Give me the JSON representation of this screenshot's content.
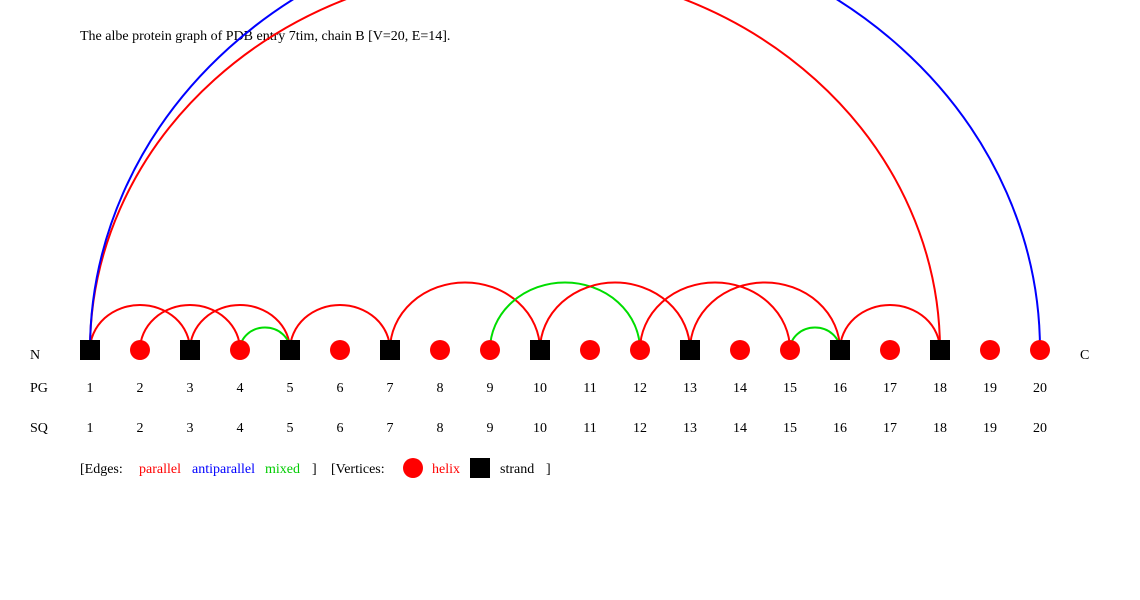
{
  "title": "The albe protein graph of PDB entry 7tim, chain B [V=20, E=14].",
  "terminus": {
    "n": "N",
    "c": "C"
  },
  "row_labels": {
    "pg": "PG",
    "sq": "SQ"
  },
  "colors": {
    "helix": "#ff0000",
    "strand": "#000000",
    "parallel": "#ff0000",
    "antiparallel": "#0000ff",
    "mixed": "#00dd00",
    "text": "#000000"
  },
  "vertices": [
    {
      "pg": "1",
      "sq": "1",
      "type": "strand"
    },
    {
      "pg": "2",
      "sq": "2",
      "type": "helix"
    },
    {
      "pg": "3",
      "sq": "3",
      "type": "strand"
    },
    {
      "pg": "4",
      "sq": "4",
      "type": "helix"
    },
    {
      "pg": "5",
      "sq": "5",
      "type": "strand"
    },
    {
      "pg": "6",
      "sq": "6",
      "type": "helix"
    },
    {
      "pg": "7",
      "sq": "7",
      "type": "strand"
    },
    {
      "pg": "8",
      "sq": "8",
      "type": "helix"
    },
    {
      "pg": "9",
      "sq": "9",
      "type": "helix"
    },
    {
      "pg": "10",
      "sq": "10",
      "type": "strand"
    },
    {
      "pg": "11",
      "sq": "11",
      "type": "helix"
    },
    {
      "pg": "12",
      "sq": "12",
      "type": "helix"
    },
    {
      "pg": "13",
      "sq": "13",
      "type": "strand"
    },
    {
      "pg": "14",
      "sq": "14",
      "type": "helix"
    },
    {
      "pg": "15",
      "sq": "15",
      "type": "helix"
    },
    {
      "pg": "16",
      "sq": "16",
      "type": "strand"
    },
    {
      "pg": "17",
      "sq": "17",
      "type": "helix"
    },
    {
      "pg": "18",
      "sq": "18",
      "type": "strand"
    },
    {
      "pg": "19",
      "sq": "19",
      "type": "helix"
    },
    {
      "pg": "20",
      "sq": "20",
      "type": "helix"
    }
  ],
  "edges": [
    {
      "from": 1,
      "to": 3,
      "type": "parallel"
    },
    {
      "from": 1,
      "to": 18,
      "type": "parallel"
    },
    {
      "from": 1,
      "to": 20,
      "type": "antiparallel"
    },
    {
      "from": 2,
      "to": 4,
      "type": "parallel"
    },
    {
      "from": 3,
      "to": 5,
      "type": "parallel"
    },
    {
      "from": 4,
      "to": 5,
      "type": "mixed"
    },
    {
      "from": 5,
      "to": 7,
      "type": "parallel"
    },
    {
      "from": 7,
      "to": 10,
      "type": "parallel"
    },
    {
      "from": 9,
      "to": 12,
      "type": "mixed"
    },
    {
      "from": 10,
      "to": 13,
      "type": "parallel"
    },
    {
      "from": 12,
      "to": 15,
      "type": "parallel"
    },
    {
      "from": 13,
      "to": 16,
      "type": "parallel"
    },
    {
      "from": 15,
      "to": 16,
      "type": "mixed"
    },
    {
      "from": 16,
      "to": 18,
      "type": "parallel"
    }
  ],
  "legend": {
    "edges_prefix": "[Edges:",
    "parallel": "parallel",
    "antiparallel": "antiparallel",
    "mixed": "mixed",
    "edges_suffix": "]",
    "vertices_prefix": "[Vertices:",
    "helix": "helix",
    "strand": "strand",
    "vertices_suffix": "]"
  }
}
